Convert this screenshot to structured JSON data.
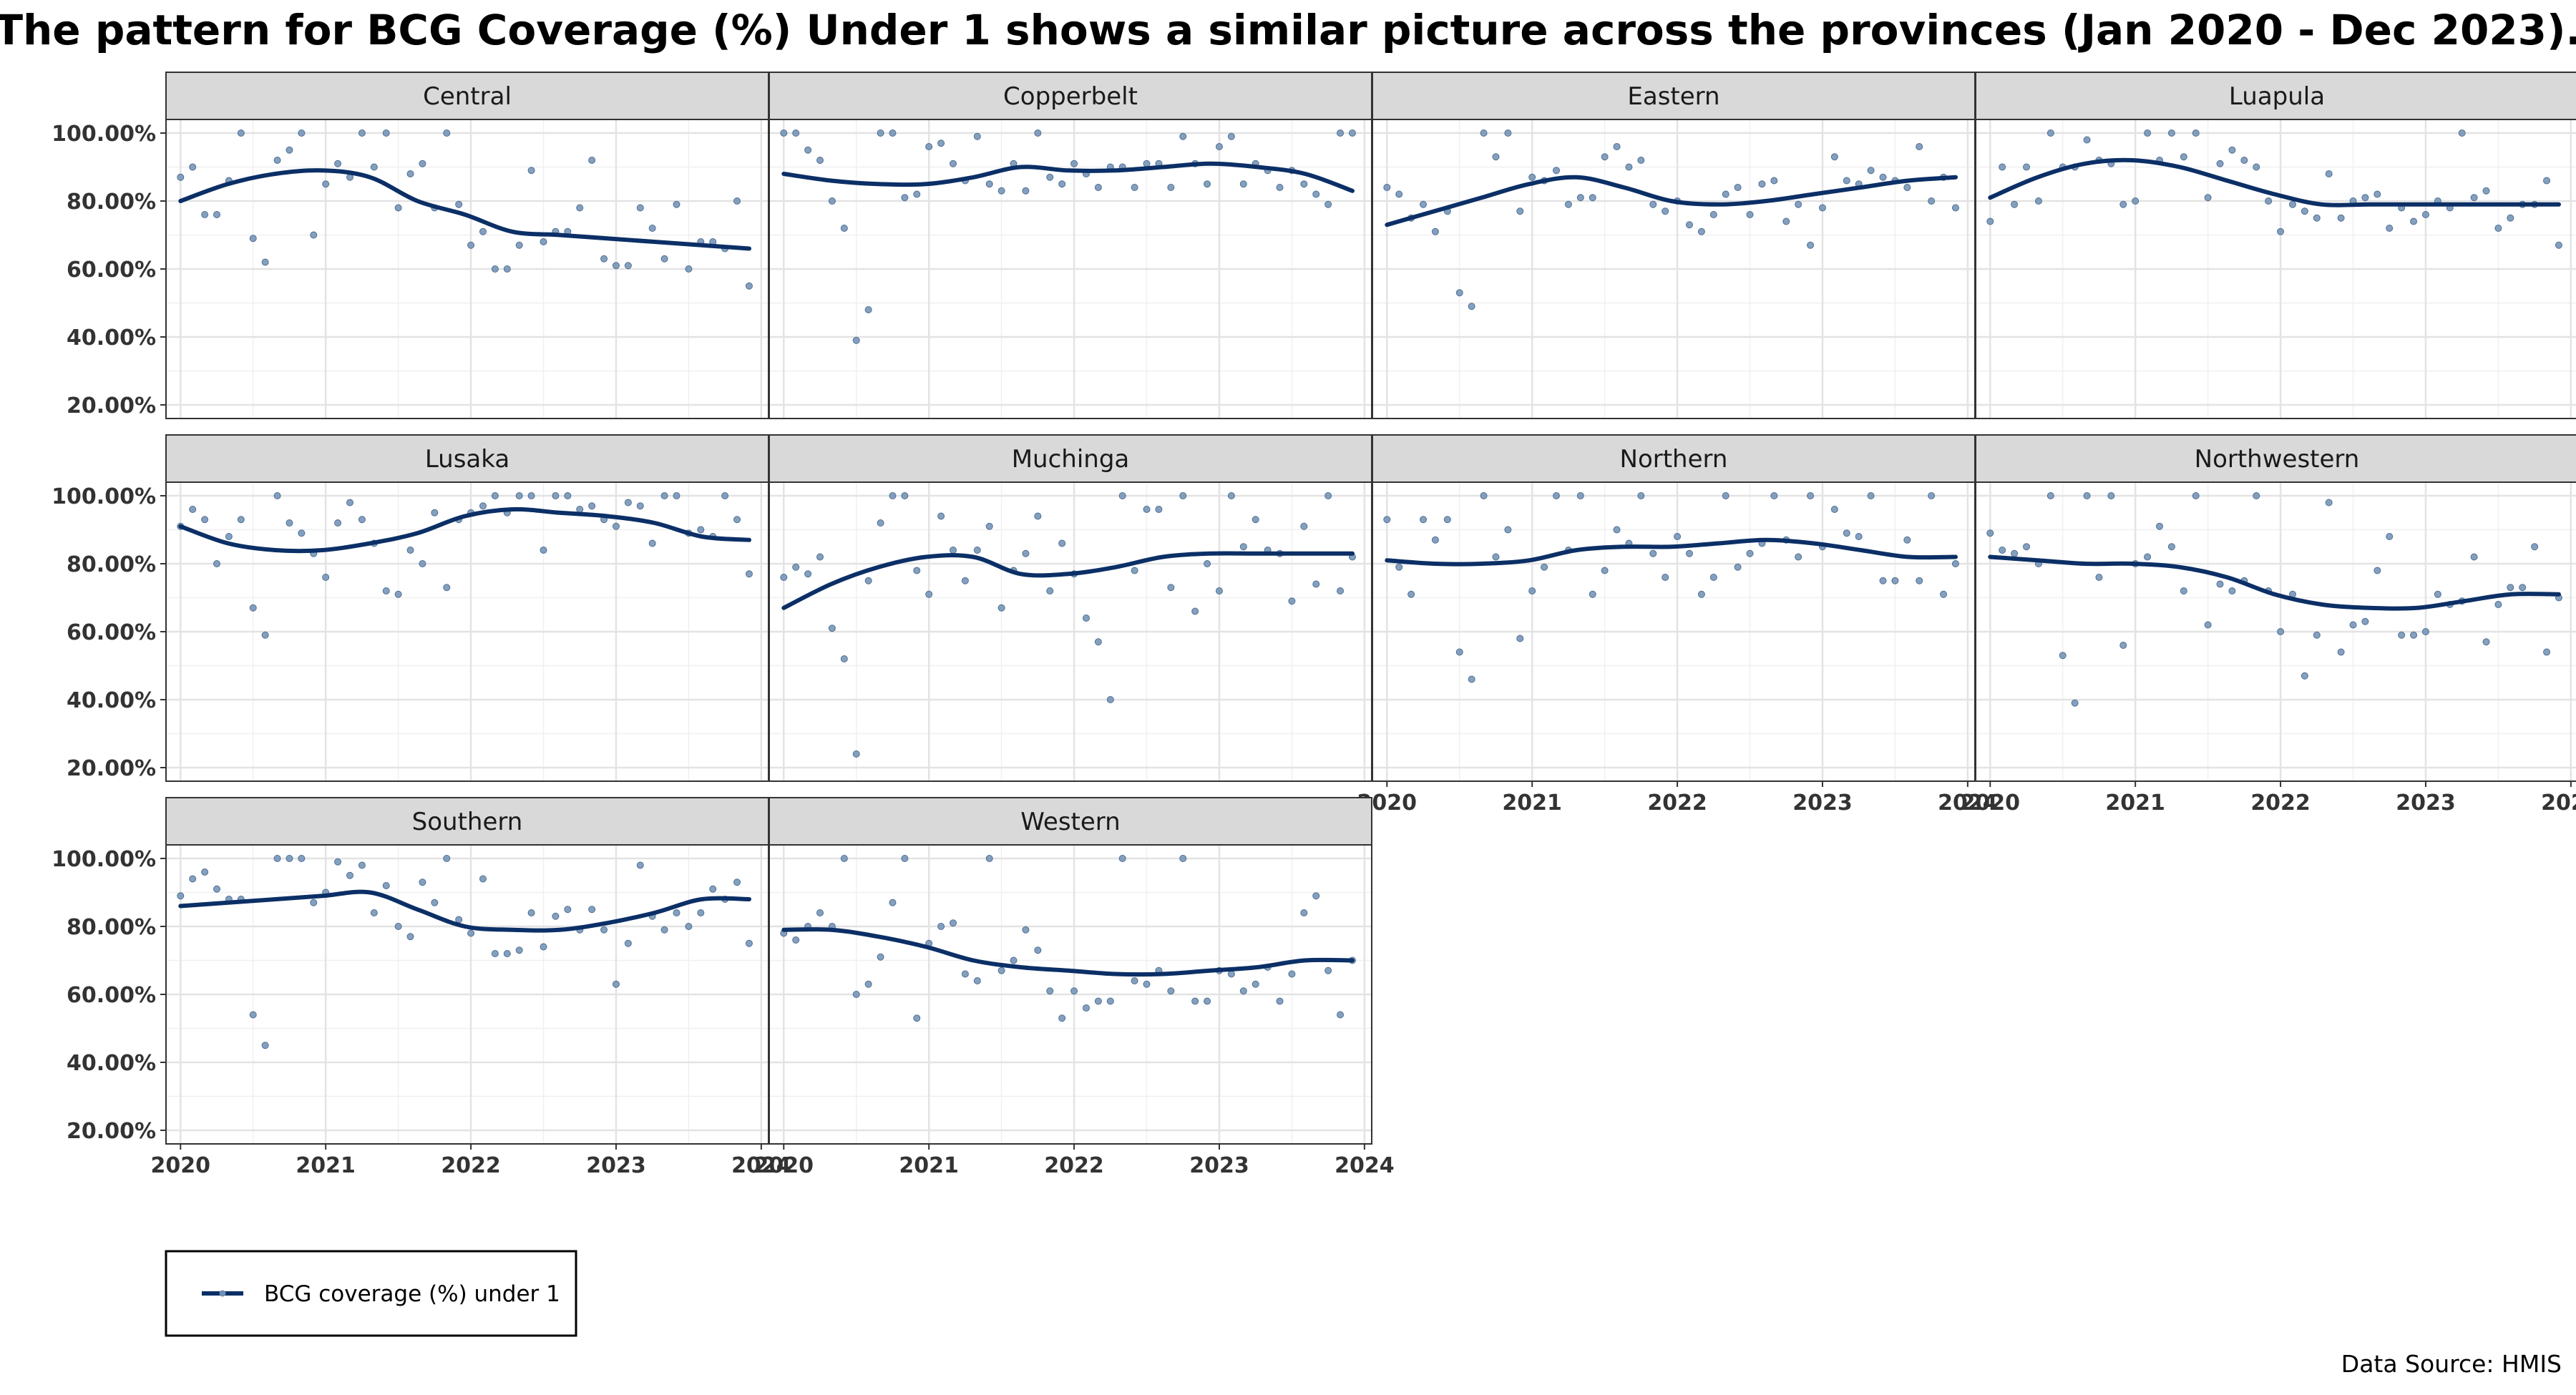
{
  "chart_data": {
    "type": "scatter",
    "title": "The pattern for BCG Coverage (%) Under 1 shows a similar picture across the provinces (Jan 2020 - Dec 2023).",
    "xlabel": "",
    "ylabel": "",
    "xlim": [
      2019.9,
      2024.05
    ],
    "ylim": [
      16,
      104
    ],
    "x_ticks": [
      2020,
      2021,
      2022,
      2023,
      2024
    ],
    "y_ticks": [
      20,
      40,
      60,
      80,
      100
    ],
    "y_tick_labels": [
      "20.00%",
      "40.00%",
      "60.00%",
      "80.00%",
      "100.00%"
    ],
    "grid": true,
    "facet_columns": 4,
    "point_color": "#6f8fb3",
    "line_color": "#0b2f66",
    "legend": {
      "position": "bottom-left",
      "label": "BCG coverage (%) under 1"
    },
    "caption": "Data Source: HMIS",
    "panels": [
      {
        "name": "Central",
        "values": [
          87,
          90,
          76,
          76,
          86,
          100,
          69,
          62,
          92,
          95,
          100,
          70,
          85,
          91,
          87,
          100,
          90,
          100,
          78,
          88,
          91,
          78,
          100,
          79,
          67,
          71,
          60,
          60,
          67,
          89,
          68,
          71,
          71,
          78,
          92,
          63,
          61,
          61,
          78,
          72,
          63,
          79,
          60,
          68,
          68,
          66,
          80,
          55
        ],
        "smooth": [
          80,
          85,
          88,
          89,
          87,
          80,
          76,
          71,
          70,
          69,
          68,
          67,
          66
        ]
      },
      {
        "name": "Copperbelt",
        "values": [
          100,
          100,
          95,
          92,
          80,
          72,
          39,
          48,
          100,
          100,
          81,
          82,
          96,
          97,
          91,
          86,
          99,
          85,
          83,
          91,
          83,
          100,
          87,
          85,
          91,
          88,
          84,
          90,
          90,
          84,
          91,
          91,
          84,
          99,
          91,
          85,
          96,
          99,
          85,
          91,
          89,
          84,
          89,
          85,
          82,
          79,
          100,
          100
        ],
        "smooth": [
          88,
          86,
          85,
          85,
          87,
          90,
          89,
          89,
          90,
          91,
          90,
          88,
          83
        ]
      },
      {
        "name": "Eastern",
        "values": [
          84,
          82,
          75,
          79,
          71,
          77,
          53,
          49,
          100,
          93,
          100,
          77,
          87,
          86,
          89,
          79,
          81,
          81,
          93,
          96,
          90,
          92,
          79,
          77,
          80,
          73,
          71,
          76,
          82,
          84,
          76,
          85,
          86,
          74,
          79,
          67,
          78,
          93,
          86,
          85,
          89,
          87,
          86,
          84,
          96,
          80,
          87,
          78
        ],
        "smooth": [
          73,
          77,
          81,
          85,
          87,
          84,
          80,
          79,
          80,
          82,
          84,
          86,
          87
        ]
      },
      {
        "name": "Luapula",
        "values": [
          74,
          90,
          79,
          90,
          80,
          100,
          90,
          90,
          98,
          92,
          91,
          79,
          80,
          100,
          92,
          100,
          93,
          100,
          81,
          91,
          95,
          92,
          90,
          80,
          71,
          79,
          77,
          75,
          88,
          75,
          80,
          81,
          82,
          72,
          78,
          74,
          76,
          80,
          78,
          100,
          81,
          83,
          72,
          75,
          79,
          79,
          86,
          67
        ],
        "smooth": [
          81,
          87,
          91,
          92,
          90,
          86,
          82,
          79,
          79,
          79,
          79,
          79,
          79
        ]
      },
      {
        "name": "Lusaka",
        "values": [
          91,
          96,
          93,
          80,
          88,
          93,
          67,
          59,
          100,
          92,
          89,
          83,
          76,
          92,
          98,
          93,
          86,
          72,
          71,
          84,
          80,
          95,
          73,
          93,
          95,
          97,
          100,
          95,
          100,
          100,
          84,
          100,
          100,
          96,
          97,
          93,
          91,
          98,
          97,
          86,
          100,
          100,
          89,
          90,
          88,
          100,
          93,
          77
        ],
        "smooth": [
          91,
          86,
          84,
          84,
          86,
          89,
          94,
          96,
          95,
          94,
          92,
          88,
          87
        ]
      },
      {
        "name": "Muchinga",
        "values": [
          76,
          79,
          77,
          82,
          61,
          52,
          24,
          75,
          92,
          100,
          100,
          78,
          71,
          94,
          84,
          75,
          84,
          91,
          67,
          78,
          83,
          94,
          72,
          86,
          77,
          64,
          57,
          40,
          100,
          78,
          96,
          96,
          73,
          100,
          66,
          80,
          72,
          100,
          85,
          93,
          84,
          83,
          69,
          91,
          74,
          100,
          72,
          82
        ],
        "smooth": [
          67,
          74,
          79,
          82,
          82,
          77,
          77,
          79,
          82,
          83,
          83,
          83,
          83
        ]
      },
      {
        "name": "Northern",
        "values": [
          93,
          79,
          71,
          93,
          87,
          93,
          54,
          46,
          100,
          82,
          90,
          58,
          72,
          79,
          100,
          84,
          100,
          71,
          78,
          90,
          86,
          100,
          83,
          76,
          88,
          83,
          71,
          76,
          100,
          79,
          83,
          86,
          100,
          87,
          82,
          100,
          85,
          96,
          89,
          88,
          100,
          75,
          75,
          87,
          75,
          100,
          71,
          80
        ],
        "smooth": [
          81,
          80,
          80,
          81,
          84,
          85,
          85,
          86,
          87,
          86,
          84,
          82,
          82
        ]
      },
      {
        "name": "Northwestern",
        "values": [
          89,
          84,
          83,
          85,
          80,
          100,
          53,
          39,
          100,
          76,
          100,
          56,
          80,
          82,
          91,
          85,
          72,
          100,
          62,
          74,
          72,
          75,
          100,
          72,
          60,
          71,
          47,
          59,
          98,
          54,
          62,
          63,
          78,
          88,
          59,
          59,
          60,
          71,
          68,
          69,
          82,
          57,
          68,
          73,
          73,
          85,
          54,
          70
        ],
        "smooth": [
          82,
          81,
          80,
          80,
          79,
          76,
          71,
          68,
          67,
          67,
          69,
          71,
          71
        ]
      },
      {
        "name": "Southern",
        "values": [
          89,
          94,
          96,
          91,
          88,
          88,
          54,
          45,
          100,
          100,
          100,
          87,
          90,
          99,
          95,
          98,
          84,
          92,
          80,
          77,
          93,
          87,
          100,
          82,
          78,
          94,
          72,
          72,
          73,
          84,
          74,
          83,
          85,
          79,
          85,
          79,
          63,
          75,
          98,
          83,
          79,
          84,
          80,
          84,
          91,
          88,
          93,
          75
        ],
        "smooth": [
          86,
          87,
          88,
          89,
          90,
          85,
          80,
          79,
          79,
          81,
          84,
          88,
          88
        ]
      },
      {
        "name": "Western",
        "values": [
          78,
          76,
          80,
          84,
          80,
          100,
          60,
          63,
          71,
          87,
          100,
          53,
          75,
          80,
          81,
          66,
          64,
          100,
          67,
          70,
          79,
          73,
          61,
          53,
          61,
          56,
          58,
          58,
          100,
          64,
          63,
          67,
          61,
          100,
          58,
          58,
          67,
          66,
          61,
          63,
          68,
          58,
          66,
          84,
          89,
          67,
          54,
          70
        ],
        "smooth": [
          79,
          79,
          77,
          74,
          70,
          68,
          67,
          66,
          66,
          67,
          68,
          70,
          70
        ]
      }
    ]
  }
}
